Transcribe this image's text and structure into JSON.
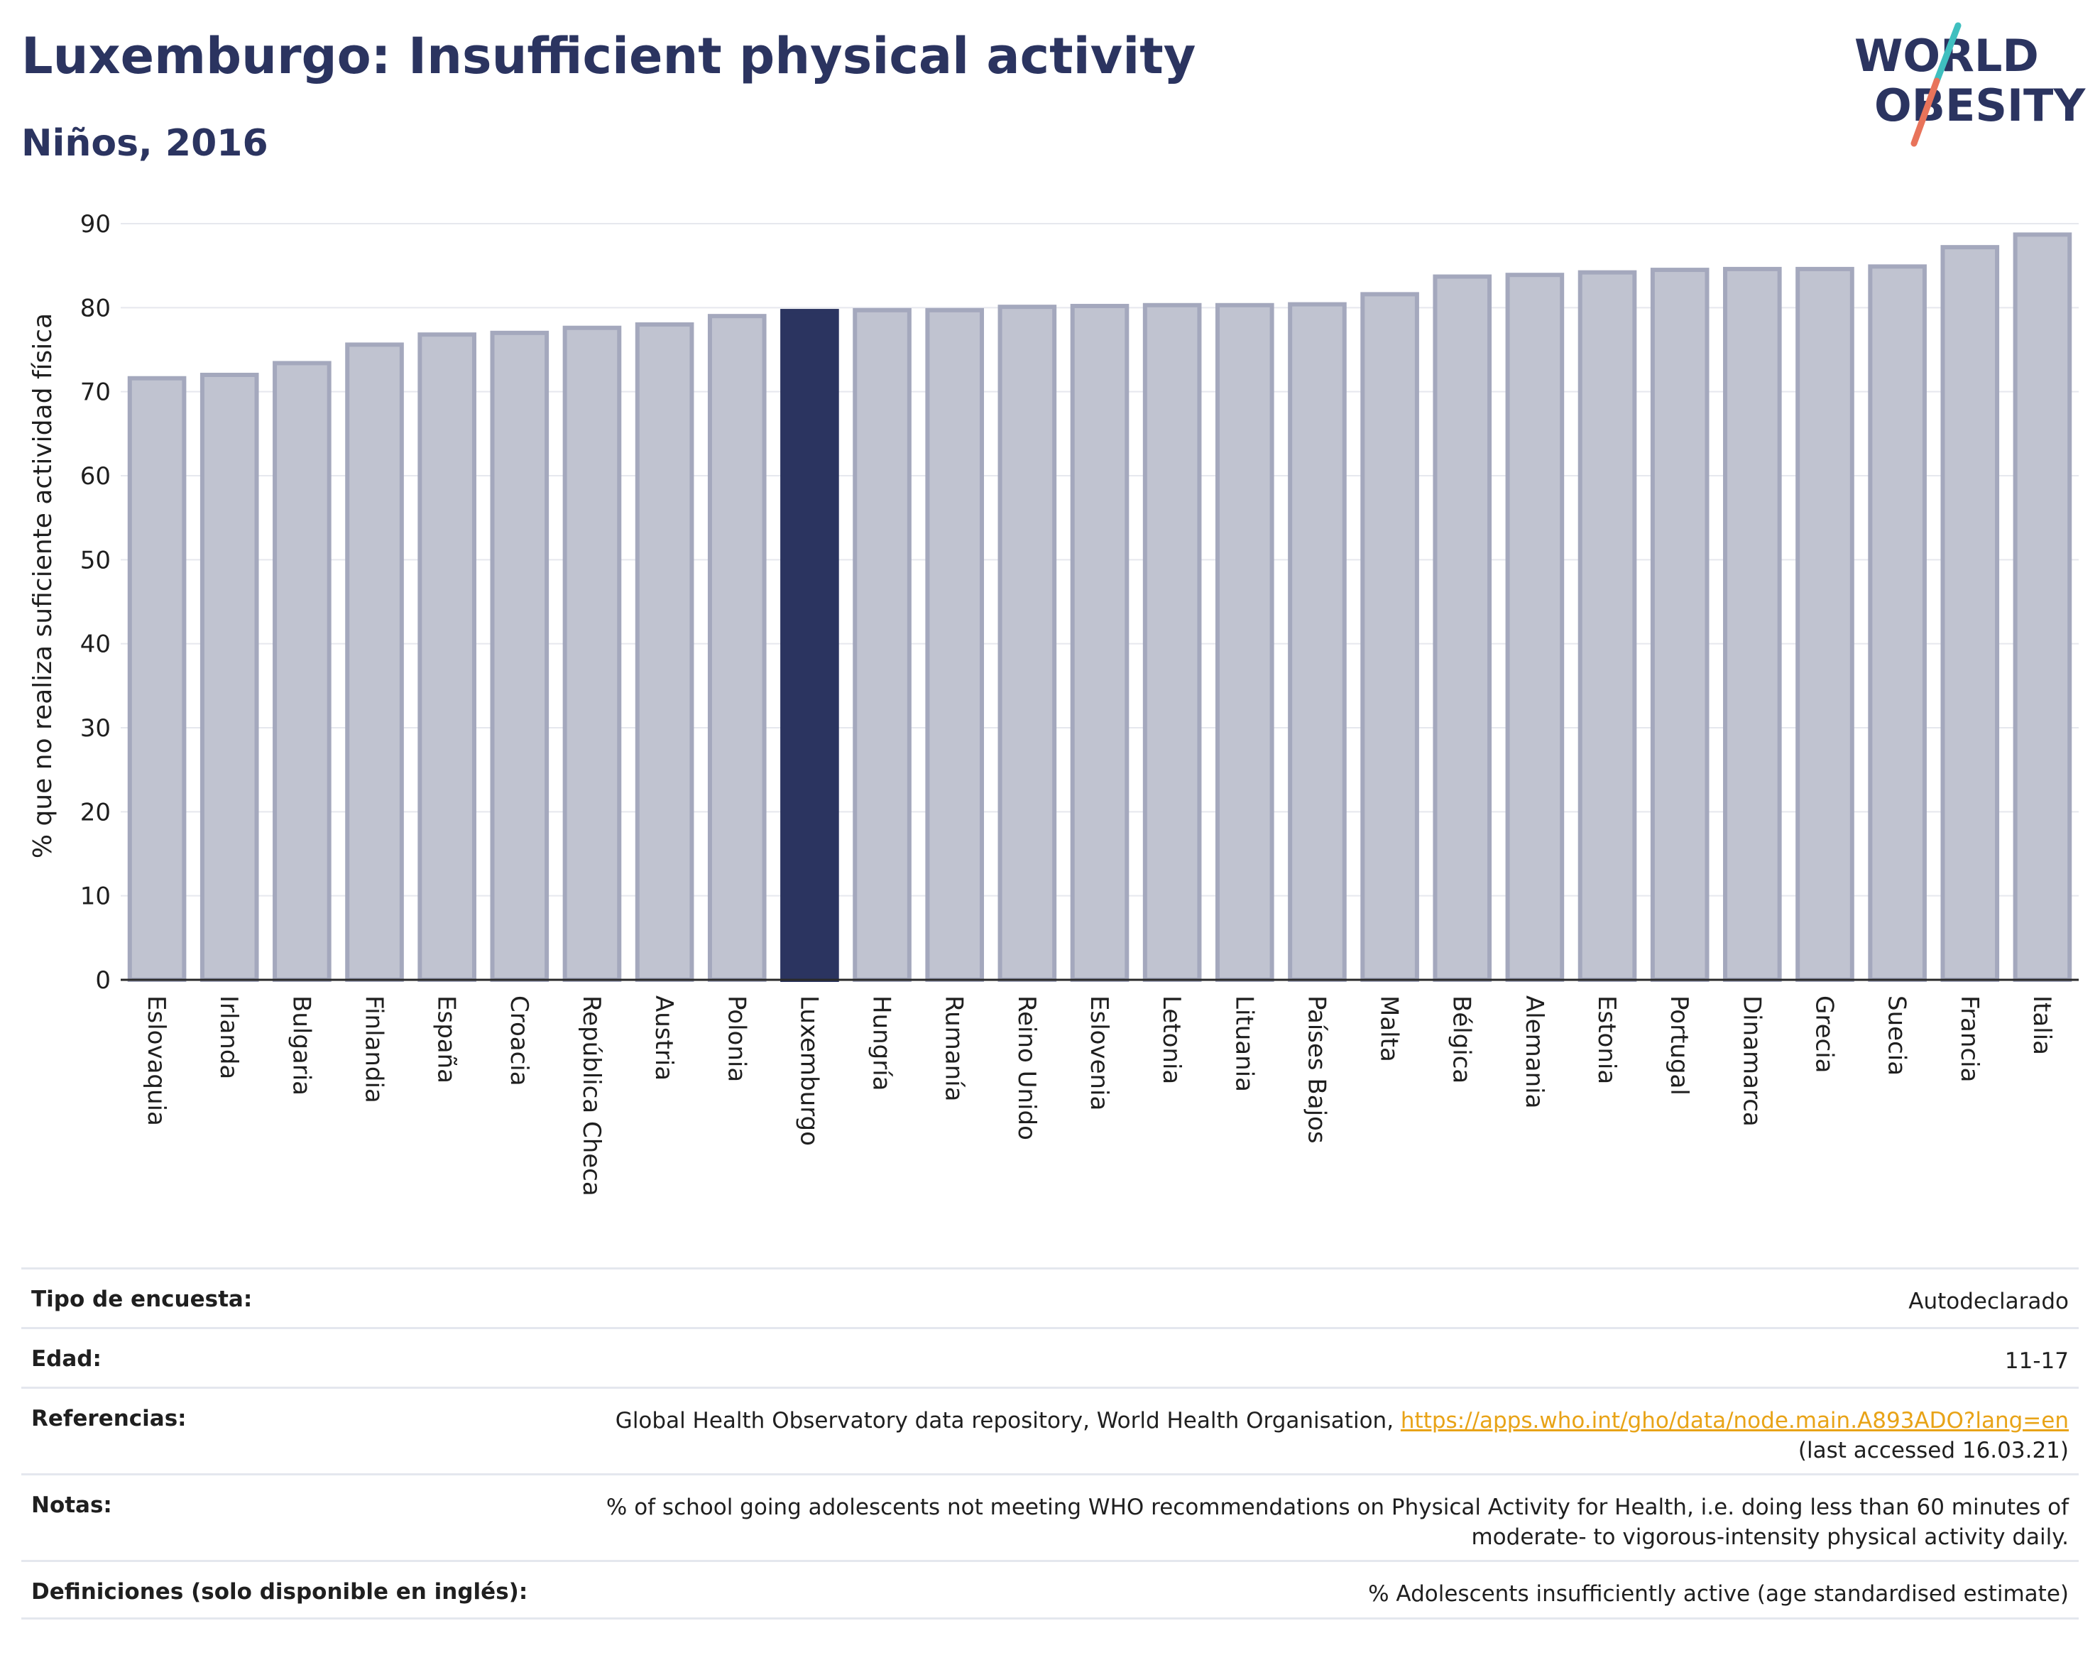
{
  "header": {
    "title": "Luxemburgo: Insufficient physical activity",
    "subtitle": "Niños, 2016"
  },
  "logo": {
    "line1": "WORLD",
    "line2": "OBESITY",
    "text_color": "#2b3460",
    "slash_colors": [
      "#3fbfbf",
      "#e8735a"
    ]
  },
  "chart_data": {
    "type": "bar",
    "title": "Luxemburgo: Insufficient physical activity",
    "subtitle": "Niños, 2016",
    "ylabel": "% que no realiza suficiente actividad física",
    "xlabel": "",
    "ylim": [
      0,
      90
    ],
    "yticks": [
      0,
      10,
      20,
      30,
      40,
      50,
      60,
      70,
      80,
      90
    ],
    "grid": true,
    "highlight": "Luxemburgo",
    "colors": {
      "default": "#c0c3d0",
      "default_border": "#a4a8bd",
      "highlight": "#2b3460"
    },
    "categories": [
      "Eslovaquia",
      "Irlanda",
      "Bulgaria",
      "Finlandia",
      "España",
      "Croacia",
      "República Checa",
      "Austria",
      "Polonia",
      "Luxemburgo",
      "Hungría",
      "Rumanía",
      "Reino Unido",
      "Eslovenia",
      "Letonia",
      "Lituania",
      "Países Bajos",
      "Malta",
      "Bélgica",
      "Alemania",
      "Estonia",
      "Portugal",
      "Dinamarca",
      "Grecia",
      "Suecia",
      "Francia",
      "Italia"
    ],
    "values": [
      71.6,
      72.0,
      73.4,
      75.6,
      76.8,
      77.0,
      77.6,
      78.0,
      79.0,
      79.6,
      79.7,
      79.7,
      80.1,
      80.2,
      80.3,
      80.3,
      80.4,
      81.6,
      83.7,
      83.9,
      84.2,
      84.5,
      84.6,
      84.6,
      84.9,
      87.2,
      88.7
    ]
  },
  "info": {
    "survey_type": {
      "label": "Tipo de encuesta:",
      "value": "Autodeclarado"
    },
    "age": {
      "label": "Edad:",
      "value": "11-17"
    },
    "references": {
      "label": "Referencias:",
      "text": "Global Health Observatory data repository, World Health Organisation, ",
      "link": "https://apps.who.int/gho/data/node.main.A893ADO?lang=en",
      "accessed": "(last accessed 16.03.21)"
    },
    "notes": {
      "label": "Notas:",
      "value": "% of school going adolescents not meeting WHO recommendations on Physical Activity for Health, i.e. doing less than 60 minutes of moderate- to vigorous-intensity physical activity daily."
    },
    "definitions": {
      "label": "Definiciones (solo disponible en inglés):",
      "value": "% Adolescents insufficiently active (age standardised estimate)"
    }
  }
}
